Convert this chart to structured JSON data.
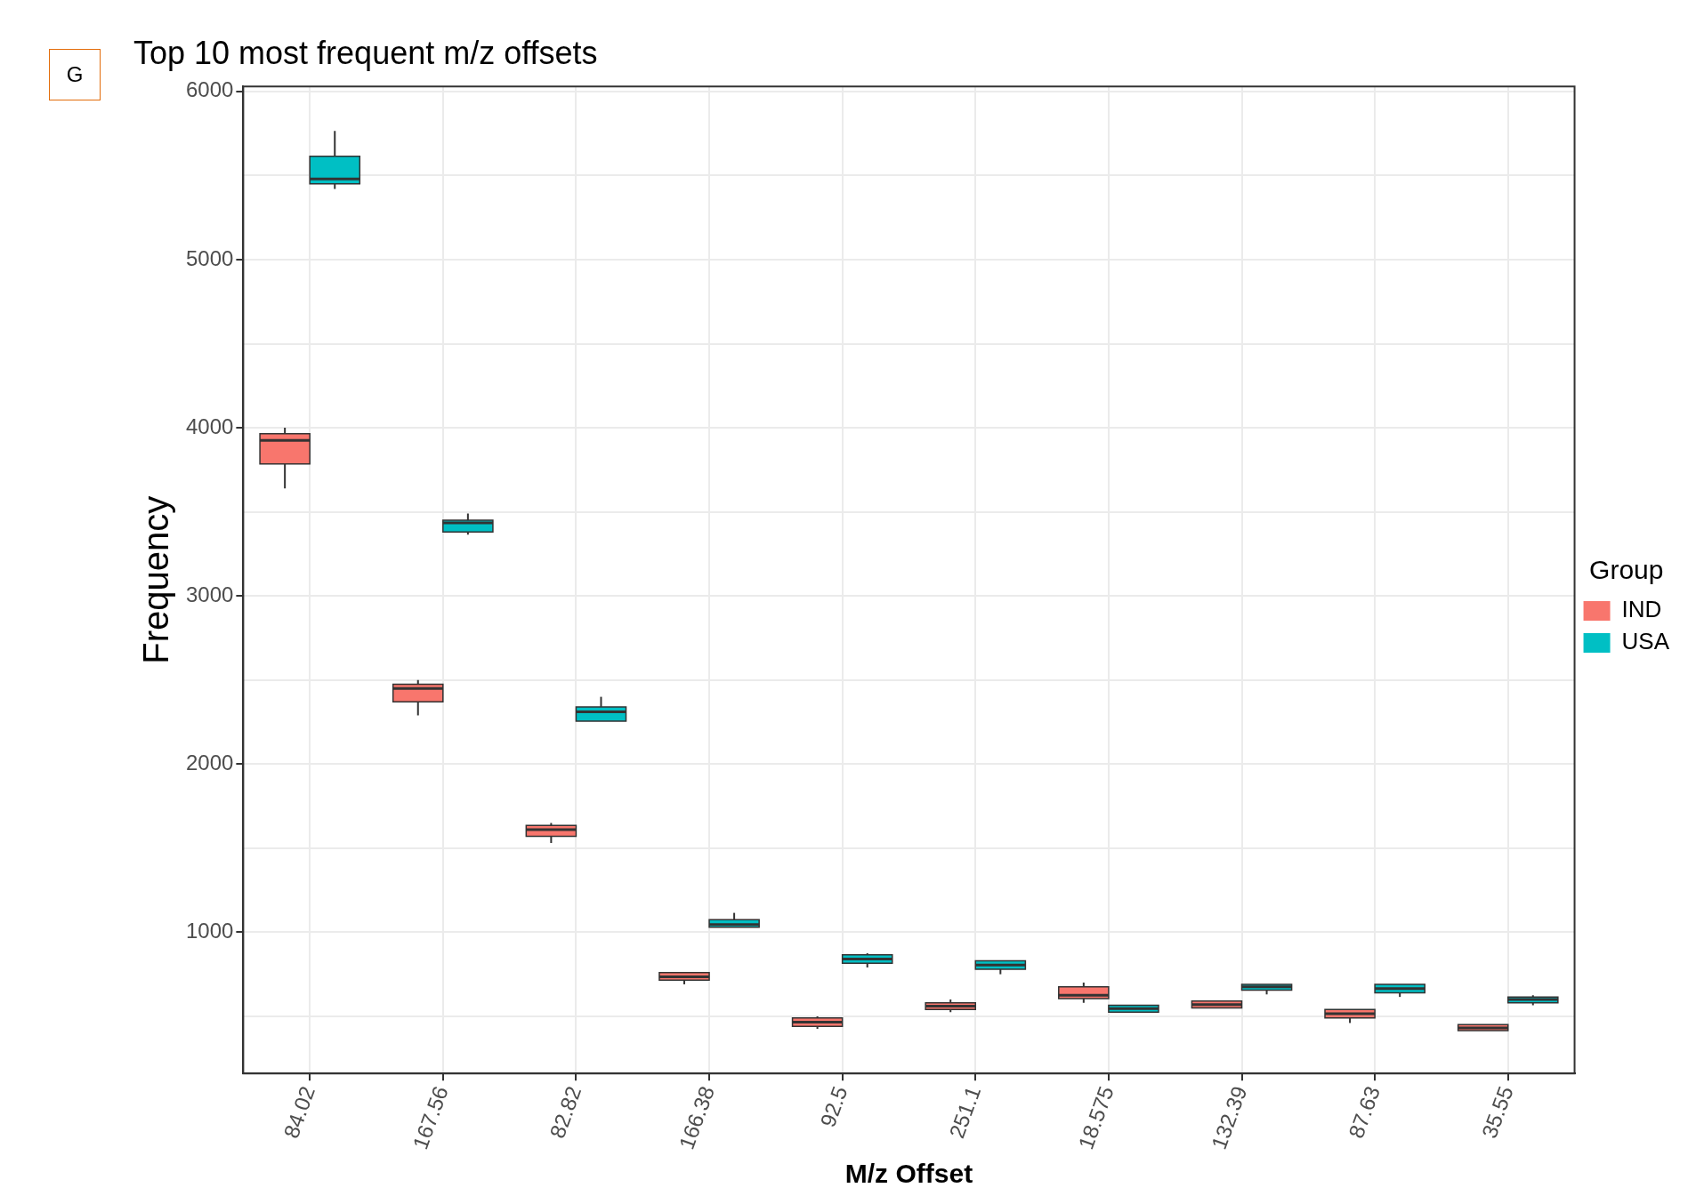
{
  "chart_data": {
    "type": "box",
    "title": "Top 10 most frequent m/z offsets",
    "xlabel": "M/z Offset",
    "ylabel": "Frequency",
    "legend_title": "Group",
    "annotations": [
      "G"
    ],
    "categories": [
      "84.02",
      "167.56",
      "82.82",
      "166.38",
      "92.5",
      "251.1",
      "18.575",
      "132.39",
      "87.63",
      "35.55"
    ],
    "ylim": [
      160,
      6030
    ],
    "yticks": [
      {
        "value": 500,
        "label": null
      },
      1000,
      {
        "value": 1500,
        "label": null
      },
      2000,
      {
        "value": 2500,
        "label": null
      },
      3000,
      {
        "value": 3500,
        "label": null
      },
      4000,
      {
        "value": 4500,
        "label": null
      },
      5000,
      {
        "value": 5500,
        "label": null
      },
      6000
    ],
    "grid": true,
    "legend": "right",
    "series": [
      {
        "name": "IND",
        "color": "#f8766d",
        "boxes": [
          {
            "low": 3640,
            "q1": 3785,
            "median": 3925,
            "q3": 3965,
            "high": 4000
          },
          {
            "low": 2290,
            "q1": 2370,
            "median": 2450,
            "q3": 2475,
            "high": 2500
          },
          {
            "low": 1530,
            "q1": 1570,
            "median": 1610,
            "q3": 1635,
            "high": 1650
          },
          {
            "low": 690,
            "q1": 715,
            "median": 735,
            "q3": 760,
            "high": 760
          },
          {
            "low": 425,
            "q1": 440,
            "median": 465,
            "q3": 490,
            "high": 500
          },
          {
            "low": 525,
            "q1": 540,
            "median": 560,
            "q3": 580,
            "high": 600
          },
          {
            "low": 580,
            "q1": 605,
            "median": 625,
            "q3": 675,
            "high": 700
          },
          {
            "low": 550,
            "q1": 550,
            "median": 570,
            "q3": 590,
            "high": 590
          },
          {
            "low": 460,
            "q1": 490,
            "median": 515,
            "q3": 540,
            "high": 540
          },
          {
            "low": 415,
            "q1": 415,
            "median": 430,
            "q3": 450,
            "high": 450
          }
        ]
      },
      {
        "name": "USA",
        "color": "#00bfc4",
        "boxes": [
          {
            "low": 5420,
            "q1": 5450,
            "median": 5480,
            "q3": 5615,
            "high": 5765
          },
          {
            "low": 3365,
            "q1": 3380,
            "median": 3435,
            "q3": 3450,
            "high": 3490
          },
          {
            "low": 2255,
            "q1": 2255,
            "median": 2310,
            "q3": 2340,
            "high": 2400
          },
          {
            "low": 1030,
            "q1": 1030,
            "median": 1045,
            "q3": 1075,
            "high": 1115
          },
          {
            "low": 790,
            "q1": 815,
            "median": 840,
            "q3": 865,
            "high": 875
          },
          {
            "low": 750,
            "q1": 780,
            "median": 805,
            "q3": 830,
            "high": 830
          },
          {
            "low": 525,
            "q1": 525,
            "median": 545,
            "q3": 565,
            "high": 565
          },
          {
            "low": 630,
            "q1": 655,
            "median": 675,
            "q3": 690,
            "high": 690
          },
          {
            "low": 615,
            "q1": 640,
            "median": 665,
            "q3": 690,
            "high": 690
          },
          {
            "low": 565,
            "q1": 580,
            "median": 600,
            "q3": 615,
            "high": 625
          }
        ]
      }
    ]
  }
}
